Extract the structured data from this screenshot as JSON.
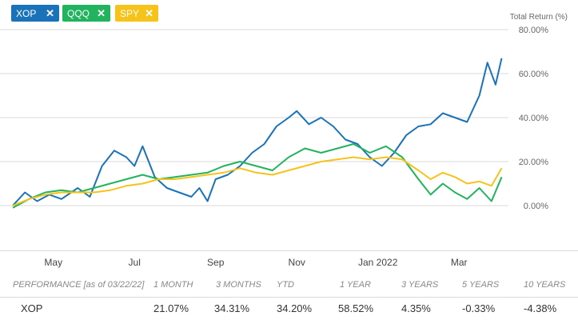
{
  "legend": {
    "chips": [
      {
        "label": "XOP",
        "color": "#1a73b8"
      },
      {
        "label": "QQQ",
        "color": "#22b35e"
      },
      {
        "label": "SPY",
        "color": "#f6c31a"
      }
    ],
    "close_glyph": "✕"
  },
  "chart_data": {
    "type": "line",
    "ylabel": "Total Return (%)",
    "ylim": [
      -10,
      80
    ],
    "yticks": [
      "80.00%",
      "60.00%",
      "40.00%",
      "20.00%",
      "0.00%"
    ],
    "ytick_values": [
      80,
      60,
      40,
      20,
      0
    ],
    "xlabels": [
      "May",
      "Jul",
      "Sep",
      "Nov",
      "Jan 2022",
      "Mar"
    ],
    "xlabel_positions": [
      1,
      3,
      5,
      7,
      9,
      11
    ],
    "xlim": [
      0,
      12.1
    ],
    "grid": true,
    "series": [
      {
        "name": "XOP",
        "color": "#1a73b8",
        "x": [
          0,
          0.3,
          0.6,
          0.9,
          1.2,
          1.6,
          1.9,
          2.2,
          2.5,
          2.8,
          3.0,
          3.2,
          3.5,
          3.8,
          4.1,
          4.4,
          4.6,
          4.8,
          5.0,
          5.3,
          5.6,
          5.9,
          6.2,
          6.5,
          6.8,
          7.0,
          7.3,
          7.6,
          7.9,
          8.2,
          8.5,
          8.8,
          9.1,
          9.4,
          9.7,
          10.0,
          10.3,
          10.6,
          10.9,
          11.2,
          11.5,
          11.7,
          11.9,
          12.05
        ],
        "y": [
          0,
          6,
          2,
          5,
          3,
          8,
          4,
          18,
          25,
          22,
          18,
          27,
          13,
          8,
          6,
          4,
          8,
          2,
          12,
          14,
          18,
          24,
          28,
          36,
          40,
          43,
          37,
          40,
          36,
          30,
          28,
          22,
          18,
          24,
          32,
          36,
          37,
          42,
          40,
          38,
          50,
          65,
          55,
          67
        ]
      },
      {
        "name": "QQQ",
        "color": "#22b35e",
        "x": [
          0,
          0.4,
          0.8,
          1.2,
          1.6,
          2.0,
          2.4,
          2.8,
          3.2,
          3.6,
          4.0,
          4.4,
          4.8,
          5.2,
          5.6,
          6.0,
          6.4,
          6.8,
          7.2,
          7.6,
          8.0,
          8.4,
          8.8,
          9.2,
          9.6,
          10.0,
          10.3,
          10.6,
          10.9,
          11.2,
          11.5,
          11.8,
          12.05
        ],
        "y": [
          -1,
          3,
          6,
          7,
          6,
          8,
          10,
          12,
          14,
          12,
          13,
          14,
          15,
          18,
          20,
          18,
          16,
          22,
          26,
          24,
          26,
          28,
          24,
          27,
          22,
          12,
          5,
          10,
          6,
          3,
          8,
          2,
          13
        ]
      },
      {
        "name": "SPY",
        "color": "#f6c31a",
        "x": [
          0,
          0.4,
          0.8,
          1.2,
          1.6,
          2.0,
          2.4,
          2.8,
          3.2,
          3.6,
          4.0,
          4.4,
          4.8,
          5.2,
          5.6,
          6.0,
          6.4,
          6.8,
          7.2,
          7.6,
          8.0,
          8.4,
          8.8,
          9.2,
          9.6,
          10.0,
          10.3,
          10.6,
          10.9,
          11.2,
          11.5,
          11.8,
          12.05
        ],
        "y": [
          0,
          3,
          5,
          6,
          6,
          6,
          7,
          9,
          10,
          12,
          12,
          13,
          14,
          15,
          17,
          15,
          14,
          16,
          18,
          20,
          21,
          22,
          21,
          22,
          21,
          16,
          12,
          15,
          13,
          10,
          11,
          9,
          17
        ]
      }
    ]
  },
  "performance": {
    "header_label": "PERFORMANCE [as of 03/22/22]",
    "columns": [
      "1 MONTH",
      "3 MONTHS",
      "YTD",
      "1 YEAR",
      "3 YEARS",
      "5 YEARS",
      "10 YEARS"
    ],
    "rows": [
      {
        "ticker": "XOP",
        "values": [
          "21.07%",
          "34.31%",
          "34.20%",
          "58.52%",
          "4.35%",
          "-0.33%",
          "-4.38%"
        ]
      }
    ]
  }
}
